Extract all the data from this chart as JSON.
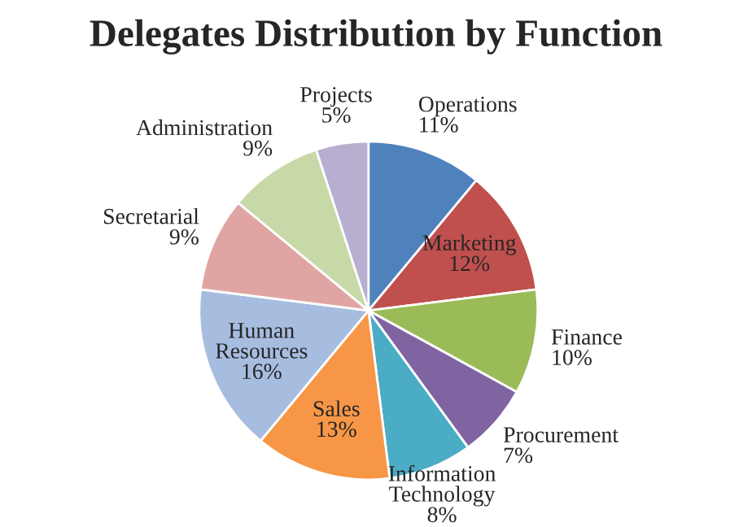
{
  "chart_data": {
    "type": "pie",
    "title": "Delegates Distribution by Function",
    "categories": [
      "Operations",
      "Marketing",
      "Finance",
      "Procurement",
      "Information Technology",
      "Sales",
      "Human Resources",
      "Secretarial",
      "Administration",
      "Projects"
    ],
    "values": [
      11,
      12,
      10,
      7,
      8,
      13,
      16,
      9,
      9,
      5
    ],
    "value_labels": [
      "11%",
      "12%",
      "10%",
      "7%",
      "8%",
      "13%",
      "16%",
      "9%",
      "9%",
      "5%"
    ],
    "colors": [
      "#4f81bd",
      "#c0504d",
      "#9bbb59",
      "#8064a2",
      "#4bacc6",
      "#f79646",
      "#a7bde0",
      "#e0a5a3",
      "#c8d9a8",
      "#b8aed0"
    ],
    "legend": false
  }
}
